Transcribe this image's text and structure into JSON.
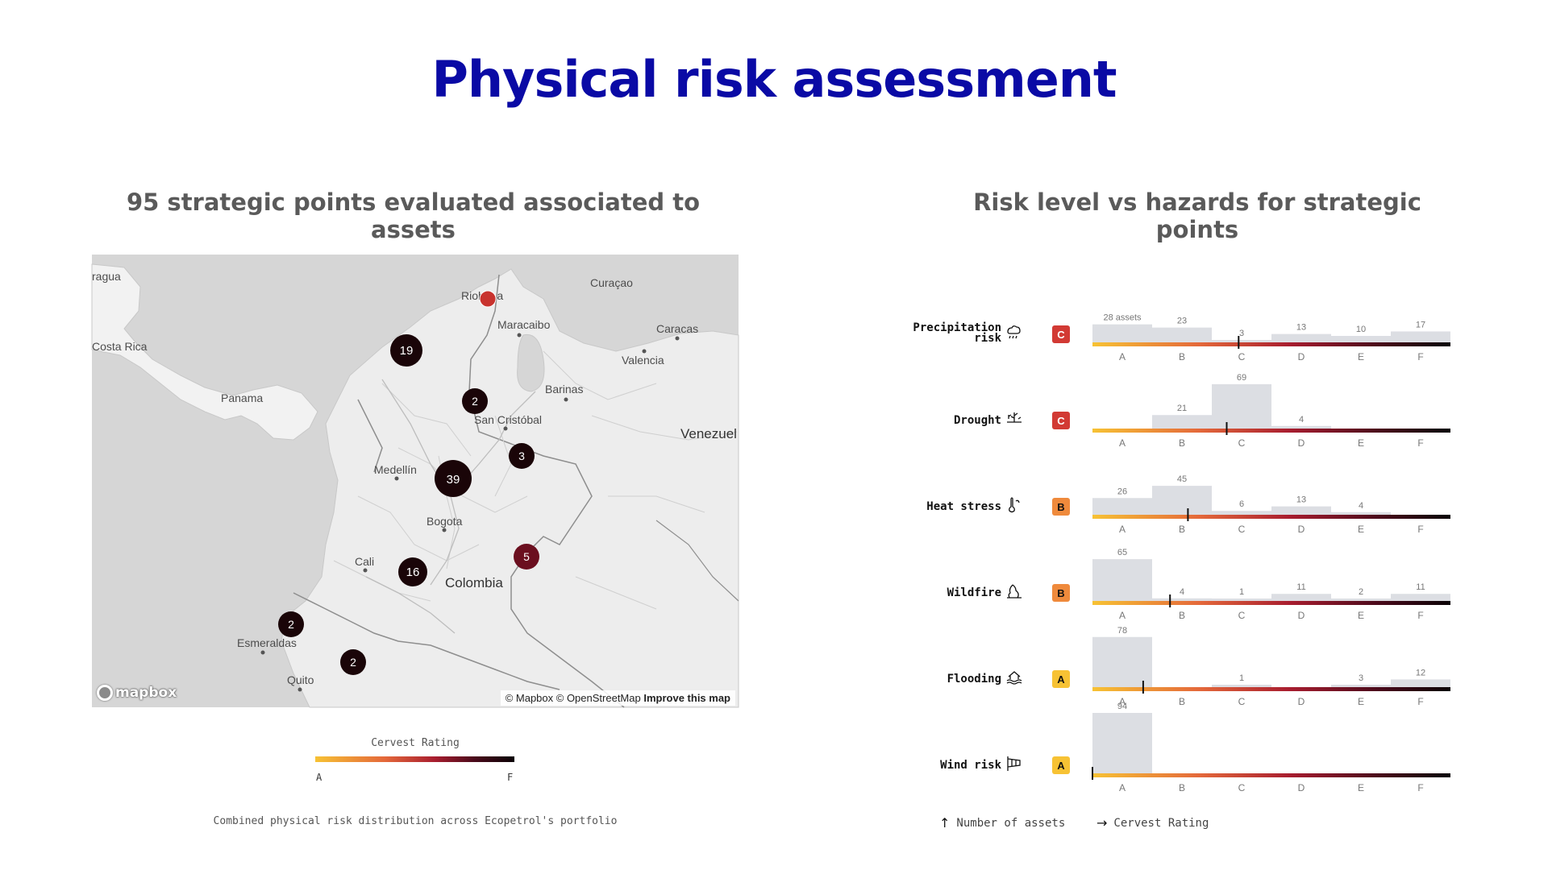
{
  "page": {
    "title": "Physical risk assessment",
    "left_title": "95 strategic points evaluated associated to assets",
    "right_title": "Risk level vs hazards for strategic points"
  },
  "map": {
    "labels": [
      {
        "id": "nicaragua",
        "text": "ragua"
      },
      {
        "id": "costa_rica",
        "text": "Costa Rica"
      },
      {
        "id": "panama",
        "text": "Panama"
      },
      {
        "id": "riohacha",
        "text": "Rioh... a"
      },
      {
        "id": "curacao",
        "text": "Curaçao"
      },
      {
        "id": "maracaibo",
        "text": "Maracaibo"
      },
      {
        "id": "caracas",
        "text": "Caracas"
      },
      {
        "id": "valencia",
        "text": "Valencia"
      },
      {
        "id": "barinas",
        "text": "Barinas"
      },
      {
        "id": "san_cristobal",
        "text": "San Cristóbal"
      },
      {
        "id": "venezuela",
        "text": "Venezuel"
      },
      {
        "id": "medellin",
        "text": "Medellín"
      },
      {
        "id": "bogota",
        "text": "Bogota"
      },
      {
        "id": "cali",
        "text": "Cali"
      },
      {
        "id": "colombia",
        "text": "Colombia"
      },
      {
        "id": "esmeraldas",
        "text": "Esmeraldas"
      },
      {
        "id": "quito",
        "text": "Quito"
      }
    ],
    "clusters": [
      {
        "id": "c19",
        "count": "19",
        "rating": "F"
      },
      {
        "id": "c2a",
        "count": "2",
        "rating": "F"
      },
      {
        "id": "c3",
        "count": "3",
        "rating": "F"
      },
      {
        "id": "c39",
        "count": "39",
        "rating": "F"
      },
      {
        "id": "c5",
        "count": "5",
        "rating": "E"
      },
      {
        "id": "c16",
        "count": "16",
        "rating": "F"
      },
      {
        "id": "c2b",
        "count": "2",
        "rating": "F"
      },
      {
        "id": "c2c",
        "count": "2",
        "rating": "F"
      },
      {
        "id": "riohacha_point",
        "count": "",
        "rating": "C"
      }
    ],
    "logo": "mapbox",
    "attribution": "© Mapbox © OpenStreetMap",
    "improve_link": "Improve this map"
  },
  "legend": {
    "title": "Cervest Rating",
    "low": "A",
    "high": "F"
  },
  "map_caption": "Combined physical risk distribution across Ecopetrol's portfolio",
  "axis_notes": {
    "y": "Number of assets",
    "x": "Cervest Rating"
  },
  "colors": {
    "title": "#0a0aa5",
    "bar": "#dcdee3",
    "rating_A": "#f7c234",
    "rating_B": "#ef8a3c",
    "rating_C": "#d23a34",
    "gradient": [
      "#f7c234",
      "#e4683a",
      "#a81d2f",
      "#4a0a1b",
      "#0a0306"
    ]
  },
  "chart_data": {
    "type": "bar",
    "categories": [
      "A",
      "B",
      "C",
      "D",
      "E",
      "F"
    ],
    "first_bar_unit": "assets",
    "series": [
      {
        "name": "Precipitation risk",
        "rating": "C",
        "values": [
          28,
          23,
          3,
          13,
          10,
          17
        ],
        "marker": 2.45,
        "icon": "rain-cloud-icon"
      },
      {
        "name": "Drought",
        "rating": "C",
        "values": [
          0,
          21,
          69,
          4,
          0,
          0
        ],
        "marker": 2.25,
        "icon": "drought-icon"
      },
      {
        "name": "Heat stress",
        "rating": "B",
        "values": [
          26,
          45,
          6,
          13,
          4,
          0
        ],
        "marker": 1.6,
        "icon": "thermometer-icon"
      },
      {
        "name": "Wildfire",
        "rating": "B",
        "values": [
          65,
          4,
          1,
          11,
          2,
          11
        ],
        "marker": 1.3,
        "icon": "wildfire-icon"
      },
      {
        "name": "Flooding",
        "rating": "A",
        "values": [
          78,
          0,
          1,
          0,
          3,
          12
        ],
        "marker": 0.85,
        "icon": "flood-icon"
      },
      {
        "name": "Wind risk",
        "rating": "A",
        "values": [
          94,
          0,
          0,
          0,
          0,
          0
        ],
        "marker": 0.0,
        "icon": "windsock-icon"
      }
    ],
    "ylim": [
      0,
      100
    ],
    "grid": false
  }
}
